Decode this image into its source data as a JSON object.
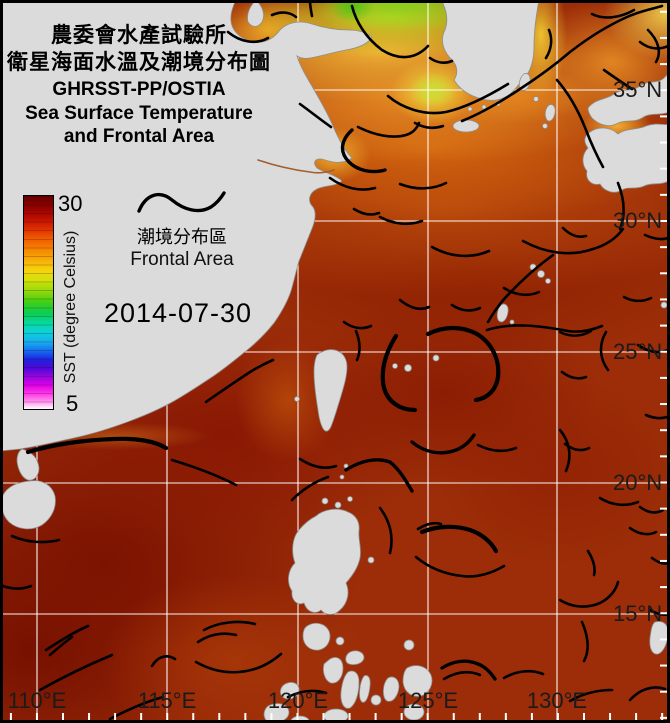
{
  "panel": {
    "title_zh1": "農委會水產試驗所",
    "title_zh2": "衛星海面水溫及潮境分布圖",
    "title_en1": "GHRSST-PP/OSTIA",
    "title_en2": "Sea Surface Temperature",
    "title_en3": "and Frontal Area",
    "colorbar": {
      "max_label": "30",
      "min_label": "5",
      "axis_label": "SST (degree Celsius)",
      "min_value": 5,
      "max_value": 30,
      "unit": "degree Celsius"
    },
    "legend": {
      "zh": "潮境分布區",
      "en": "Frontal Area"
    },
    "date": "2014-07-30"
  },
  "map": {
    "lat_labels": [
      "35°N",
      "30°N",
      "25°N",
      "20°N",
      "15°N"
    ],
    "lon_labels": [
      "110°E",
      "115°E",
      "120°E",
      "125°E",
      "130°E"
    ],
    "colors": {
      "land": "#dbdbdb",
      "gridline": "#ffffff",
      "frontal_line": "#000000",
      "sea_warm_base": "#9c2d08",
      "sea_hot": "#7c1301",
      "sea_cool_north": "#8ad01c"
    }
  }
}
